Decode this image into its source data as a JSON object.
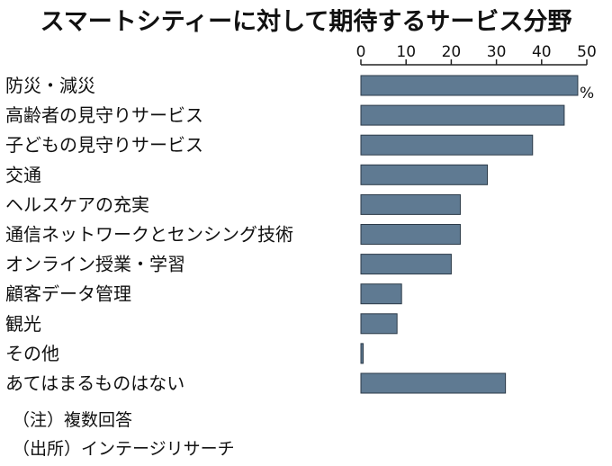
{
  "chart_data": {
    "type": "bar",
    "orientation": "horizontal",
    "title": "スマートシティーに対して期待するサービス分野",
    "unit": "%",
    "categories": [
      "防災・減災",
      "高齢者の見守りサービス",
      "子どもの見守りサービス",
      "交通",
      "ヘルスケアの充実",
      "通信ネットワークとセンシング技術",
      "オンライン授業・学習",
      "顧客データ管理",
      "観光",
      "その他",
      "あてはまるものはない"
    ],
    "values": [
      48,
      45,
      38,
      28,
      22,
      22,
      20,
      9,
      8,
      0.5,
      32
    ],
    "xlim": [
      0,
      50
    ],
    "ticks": [
      "0",
      "10",
      "20",
      "30",
      "40",
      "50"
    ],
    "tick_values": [
      0,
      10,
      20,
      30,
      40,
      50
    ],
    "bar_color": "#5f7a92",
    "bar_edge_color": "#2b3a48",
    "grid": false,
    "axis_position": "top"
  },
  "notes": {
    "note1": "（注）複数回答",
    "note2": "（出所）インテージリサーチ"
  }
}
